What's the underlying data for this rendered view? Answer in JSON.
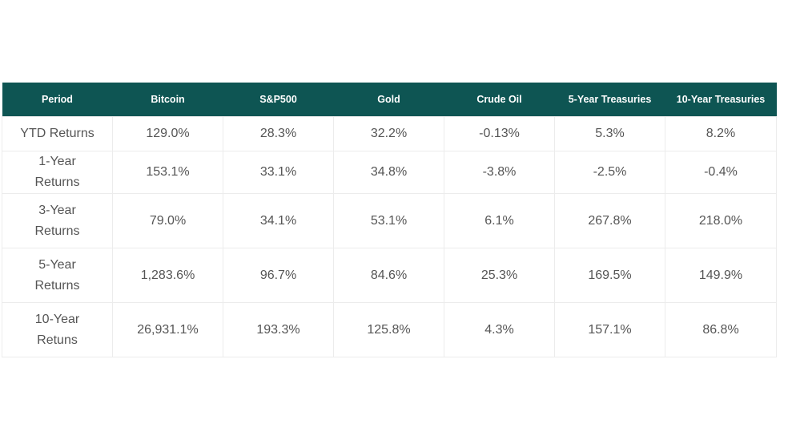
{
  "table": {
    "headers": [
      "Period",
      "Bitcoin",
      "S&P500",
      "Gold",
      "Crude Oil",
      "5-Year Treasuries",
      "10-Year Treasuries"
    ],
    "rows": [
      {
        "period": "YTD Returns",
        "values": [
          "129.0%",
          "28.3%",
          "32.2%",
          "-0.13%",
          "5.3%",
          "8.2%"
        ]
      },
      {
        "period": "1-Year Returns",
        "values": [
          "153.1%",
          "33.1%",
          "34.8%",
          "-3.8%",
          "-2.5%",
          "-0.4%"
        ]
      },
      {
        "period": "3-Year Returns",
        "values": [
          "79.0%",
          "34.1%",
          "53.1%",
          "6.1%",
          "267.8%",
          "218.0%"
        ]
      },
      {
        "period": "5-Year Returns",
        "values": [
          "1,283.6%",
          "96.7%",
          "84.6%",
          "25.3%",
          "169.5%",
          "149.9%"
        ]
      },
      {
        "period": "10-Year Retuns",
        "values": [
          "26,931.1%",
          "193.3%",
          "125.8%",
          "4.3%",
          "157.1%",
          "86.8%"
        ]
      }
    ]
  },
  "colors": {
    "header_background": "#0e5553",
    "header_text": "#ffffff",
    "cell_text": "#555555",
    "cell_border": "#ececec"
  }
}
